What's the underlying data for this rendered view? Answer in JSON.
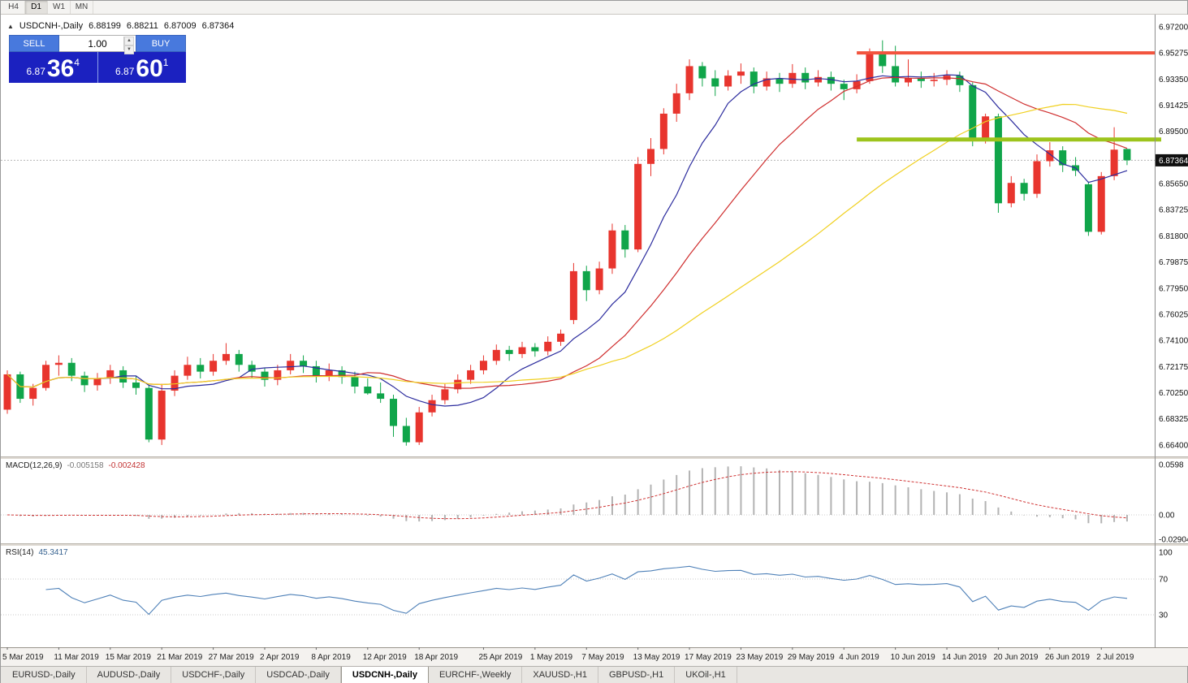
{
  "window": {
    "toolbar_timeframes": [
      {
        "label": "H4",
        "active": false
      },
      {
        "label": "D1",
        "active": true
      },
      {
        "label": "W1",
        "active": false
      },
      {
        "label": "MN",
        "active": false
      }
    ]
  },
  "chart_info": {
    "symbol_title": "USDCNH-,Daily",
    "open": "6.88199",
    "high": "6.88211",
    "low": "6.87009",
    "close": "6.87364"
  },
  "trade_panel": {
    "sell_label": "SELL",
    "buy_label": "BUY",
    "lot_size": "1.00",
    "sell_price_small": "6.87",
    "sell_price_big": "36",
    "sell_price_sup": "4",
    "buy_price_small": "6.87",
    "buy_price_big": "60",
    "buy_price_sup": "1"
  },
  "indicators": {
    "macd": {
      "label": "MACD(12,26,9)",
      "value_main": "-0.005158",
      "value_signal": "-0.002428",
      "axis_labels": [
        "0.0598",
        "0.00",
        "-0.0290495"
      ]
    },
    "rsi": {
      "label": "RSI(14)",
      "value": "45.3417",
      "levels": [
        100,
        70,
        30
      ]
    }
  },
  "price_axis": {
    "labels": [
      "6.97200",
      "6.95275",
      "6.93350",
      "6.91425",
      "6.89500",
      "6.85650",
      "6.83725",
      "6.81800",
      "6.79875",
      "6.77950",
      "6.76025",
      "6.74100",
      "6.72175",
      "6.70250",
      "6.68325",
      "6.66400"
    ],
    "bid_badge": "6.87364"
  },
  "tabs": [
    {
      "label": "EURUSD-,Daily",
      "active": false
    },
    {
      "label": "AUDUSD-,Daily",
      "active": false
    },
    {
      "label": "USDCHF-,Daily",
      "active": false
    },
    {
      "label": "USDCAD-,Daily",
      "active": false
    },
    {
      "label": "USDCNH-,Daily",
      "active": true
    },
    {
      "label": "EURCHF-,Weekly",
      "active": false
    },
    {
      "label": "XAUUSD-,H1",
      "active": false
    },
    {
      "label": "GBPUSD-,H1",
      "active": false
    },
    {
      "label": "UKOil-,H1",
      "active": false
    }
  ],
  "chart_data": {
    "type": "candlestick",
    "symbol": "USDCNH",
    "timeframe": "Daily",
    "bull_color": "#e8352e",
    "bear_color": "#10a54a",
    "bid": 6.87364,
    "price_range": {
      "top": 6.98094,
      "bottom": 6.65557
    },
    "moving_averages": [
      {
        "period": 8,
        "color": "#2c2c9e"
      },
      {
        "period": 17,
        "color": "#cf2e2e"
      },
      {
        "period": 34,
        "color": "#f0d020"
      }
    ],
    "hlines": [
      {
        "price": 6.95275,
        "color": "#f2543e",
        "width": 4,
        "from_index": 66,
        "overhang": 0
      },
      {
        "price": 6.889,
        "color": "#9dc41c",
        "width": 5,
        "from_index": 66,
        "overhang": 8
      }
    ],
    "x_labels": [
      [
        0,
        "5 Mar 2019"
      ],
      [
        4,
        "11 Mar 2019"
      ],
      [
        8,
        "15 Mar 2019"
      ],
      [
        12,
        "21 Mar 2019"
      ],
      [
        16,
        "27 Mar 2019"
      ],
      [
        20,
        "2 Apr 2019"
      ],
      [
        24,
        "8 Apr 2019"
      ],
      [
        28,
        "12 Apr 2019"
      ],
      [
        32,
        "18 Apr 2019"
      ],
      [
        37,
        "25 Apr 2019"
      ],
      [
        41,
        "1 May 2019"
      ],
      [
        45,
        "7 May 2019"
      ],
      [
        49,
        "13 May 2019"
      ],
      [
        53,
        "17 May 2019"
      ],
      [
        57,
        "23 May 2019"
      ],
      [
        61,
        "29 May 2019"
      ],
      [
        65,
        "4 Jun 2019"
      ],
      [
        69,
        "10 Jun 2019"
      ],
      [
        73,
        "14 Jun 2019"
      ],
      [
        77,
        "20 Jun 2019"
      ],
      [
        81,
        "26 Jun 2019"
      ],
      [
        85,
        "2 Jul 2019"
      ]
    ],
    "candles": [
      [
        6.69,
        6.719,
        6.687,
        6.716
      ],
      [
        6.716,
        6.718,
        6.695,
        6.698
      ],
      [
        6.698,
        6.709,
        6.693,
        6.706
      ],
      [
        6.706,
        6.726,
        6.704,
        6.723
      ],
      [
        6.723,
        6.73,
        6.715,
        6.7245
      ],
      [
        6.7245,
        6.728,
        6.711,
        6.715
      ],
      [
        6.715,
        6.718,
        6.703,
        6.708
      ],
      [
        6.708,
        6.717,
        6.704,
        6.713
      ],
      [
        6.713,
        6.723,
        6.709,
        6.719
      ],
      [
        6.719,
        6.722,
        6.706,
        6.71
      ],
      [
        6.71,
        6.715,
        6.701,
        6.706
      ],
      [
        6.706,
        6.708,
        6.666,
        6.668
      ],
      [
        6.668,
        6.709,
        6.664,
        6.704
      ],
      [
        6.704,
        6.719,
        6.7,
        6.715
      ],
      [
        6.715,
        6.729,
        6.712,
        6.723
      ],
      [
        6.723,
        6.728,
        6.713,
        6.718
      ],
      [
        6.718,
        6.731,
        6.715,
        6.726
      ],
      [
        6.726,
        6.739,
        6.723,
        6.731
      ],
      [
        6.731,
        6.734,
        6.718,
        6.723
      ],
      [
        6.723,
        6.726,
        6.713,
        6.718
      ],
      [
        6.718,
        6.721,
        6.707,
        6.712
      ],
      [
        6.712,
        6.723,
        6.708,
        6.719
      ],
      [
        6.719,
        6.731,
        6.716,
        6.726
      ],
      [
        6.726,
        6.73,
        6.717,
        6.722
      ],
      [
        6.722,
        6.726,
        6.71,
        6.715
      ],
      [
        6.715,
        6.724,
        6.711,
        6.719
      ],
      [
        6.719,
        6.722,
        6.709,
        6.714
      ],
      [
        6.714,
        6.718,
        6.702,
        6.707
      ],
      [
        6.707,
        6.713,
        6.701,
        6.702
      ],
      [
        6.702,
        6.71,
        6.695,
        6.698
      ],
      [
        6.698,
        6.701,
        6.67,
        6.678
      ],
      [
        6.678,
        6.684,
        6.6635,
        6.666
      ],
      [
        6.666,
        6.692,
        6.664,
        6.688
      ],
      [
        6.688,
        6.701,
        6.685,
        6.697
      ],
      [
        6.697,
        6.709,
        6.694,
        6.705
      ],
      [
        6.705,
        6.716,
        6.702,
        6.712
      ],
      [
        6.712,
        6.723,
        6.709,
        6.719
      ],
      [
        6.719,
        6.73,
        6.716,
        6.726
      ],
      [
        6.726,
        6.738,
        6.723,
        6.734
      ],
      [
        6.734,
        6.737,
        6.726,
        6.731
      ],
      [
        6.731,
        6.74,
        6.728,
        6.736
      ],
      [
        6.736,
        6.739,
        6.729,
        6.733
      ],
      [
        6.733,
        6.744,
        6.73,
        6.74
      ],
      [
        6.74,
        6.749,
        6.737,
        6.746
      ],
      [
        6.756,
        6.798,
        6.753,
        6.792
      ],
      [
        6.792,
        6.796,
        6.77,
        6.778
      ],
      [
        6.778,
        6.799,
        6.775,
        6.794
      ],
      [
        6.794,
        6.827,
        6.79,
        6.822
      ],
      [
        6.822,
        6.826,
        6.802,
        6.808
      ],
      [
        6.808,
        6.876,
        6.806,
        6.871
      ],
      [
        6.871,
        6.89,
        6.862,
        6.882
      ],
      [
        6.882,
        6.912,
        6.878,
        6.908
      ],
      [
        6.908,
        6.93,
        6.902,
        6.923
      ],
      [
        6.923,
        6.948,
        6.918,
        6.943
      ],
      [
        6.943,
        6.946,
        6.928,
        6.934
      ],
      [
        6.934,
        6.94,
        6.921,
        6.928
      ],
      [
        6.928,
        6.94,
        6.925,
        6.936
      ],
      [
        6.936,
        6.945,
        6.93,
        6.939
      ],
      [
        6.939,
        6.942,
        6.923,
        6.928
      ],
      [
        6.928,
        6.939,
        6.925,
        6.934
      ],
      [
        6.934,
        6.938,
        6.924,
        6.93
      ],
      [
        6.93,
        6.9445,
        6.927,
        6.938
      ],
      [
        6.938,
        6.942,
        6.926,
        6.931
      ],
      [
        6.931,
        6.94,
        6.928,
        6.935
      ],
      [
        6.935,
        6.939,
        6.925,
        6.93
      ],
      [
        6.93,
        6.933,
        6.918,
        6.926
      ],
      [
        6.926,
        6.937,
        6.923,
        6.932
      ],
      [
        6.932,
        6.956,
        6.93,
        6.952
      ],
      [
        6.952,
        6.962,
        6.938,
        6.943
      ],
      [
        6.943,
        6.958,
        6.928,
        6.931
      ],
      [
        6.931,
        6.948,
        6.928,
        6.934
      ],
      [
        6.934,
        6.939,
        6.927,
        6.932
      ],
      [
        6.932,
        6.938,
        6.928,
        6.933
      ],
      [
        6.933,
        6.94,
        6.929,
        6.936
      ],
      [
        6.936,
        6.939,
        6.924,
        6.929
      ],
      [
        6.929,
        6.931,
        6.884,
        6.889
      ],
      [
        6.889,
        6.908,
        6.886,
        6.906
      ],
      [
        6.906,
        6.908,
        6.835,
        6.842
      ],
      [
        6.842,
        6.862,
        6.839,
        6.857
      ],
      [
        6.857,
        6.86,
        6.844,
        6.849
      ],
      [
        6.849,
        6.878,
        6.846,
        6.873
      ],
      [
        6.873,
        6.887,
        6.869,
        6.881
      ],
      [
        6.881,
        6.884,
        6.865,
        6.87
      ],
      [
        6.87,
        6.876,
        6.862,
        6.866
      ],
      [
        6.856,
        6.858,
        6.818,
        6.821
      ],
      [
        6.821,
        6.865,
        6.819,
        6.862
      ],
      [
        6.862,
        6.898,
        6.859,
        6.8815
      ],
      [
        6.88199,
        6.88211,
        6.87009,
        6.87364
      ]
    ]
  }
}
